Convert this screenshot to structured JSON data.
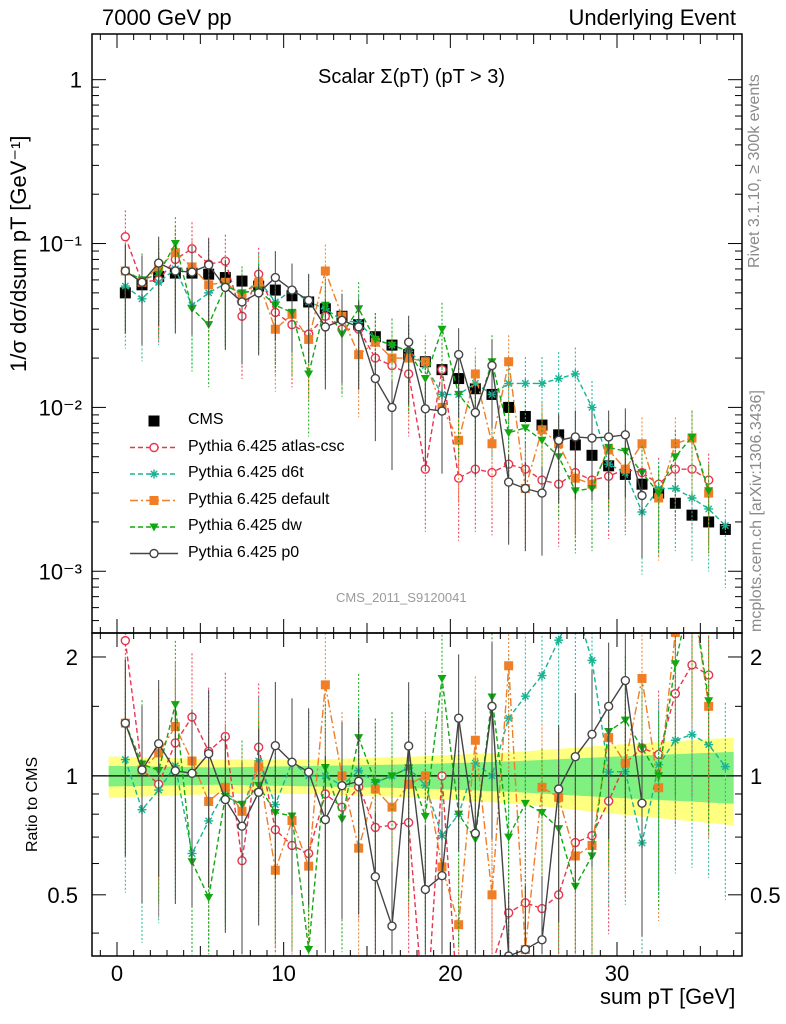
{
  "header": {
    "left": "7000 GeV pp",
    "right": "Underlying Event"
  },
  "side_labels": {
    "top": "Rivet 3.1.10, ≥ 300k events",
    "bottom": "mcplots.cern.ch [arXiv:1306.3436]"
  },
  "analysis_id": "CMS_2011_S9120041",
  "chart_data": [
    {
      "type": "scatter",
      "panel": "main",
      "title": "Scalar Σ(pT) (pT > 3)",
      "xlabel": "sum pT [GeV]",
      "ylabel": "1/σ dσ/dsum pT [GeV⁻¹]",
      "xlim": [
        -1.5,
        37.5
      ],
      "ylim": [
        0.00042,
        1.9
      ],
      "yscale": "log",
      "y_ticks": [
        "10⁻³",
        "10⁻²",
        "10⁻¹",
        "1"
      ],
      "legend_position": "left-center",
      "series": [
        {
          "name": "CMS",
          "color": "#000000",
          "marker": "square",
          "line": "none",
          "x": [
            0.5,
            1.5,
            2.5,
            3.5,
            4.5,
            5.5,
            6.5,
            7.5,
            8.5,
            9.5,
            10.5,
            11.5,
            12.5,
            13.5,
            14.5,
            15.5,
            16.5,
            17.5,
            18.5,
            19.5,
            20.5,
            21.5,
            22.5,
            23.5,
            24.5,
            25.5,
            26.5,
            27.5,
            28.5,
            29.5,
            30.5,
            31.5,
            32.5,
            33.5,
            34.5,
            35.5,
            36.5
          ],
          "y": [
            0.05,
            0.056,
            0.063,
            0.066,
            0.066,
            0.065,
            0.062,
            0.059,
            0.055,
            0.052,
            0.048,
            0.044,
            0.04,
            0.036,
            0.032,
            0.027,
            0.024,
            0.021,
            0.019,
            0.017,
            0.015,
            0.013,
            0.012,
            0.01,
            0.0088,
            0.0078,
            0.0068,
            0.0059,
            0.0051,
            0.0044,
            0.0039,
            0.0034,
            0.003,
            0.0026,
            0.0022,
            0.002,
            0.0018
          ]
        },
        {
          "name": "Pythia 6.425 atlas-csc",
          "color": "#e8354f",
          "marker": "open-circle",
          "line": "dashed",
          "x": [
            0.5,
            1.5,
            2.5,
            3.5,
            4.5,
            5.5,
            6.5,
            7.5,
            8.5,
            9.5,
            10.5,
            11.5,
            12.5,
            13.5,
            14.5,
            15.5,
            16.5,
            17.5,
            18.5,
            19.5,
            20.5,
            21.5,
            22.5,
            23.5,
            24.5,
            25.5,
            26.5,
            27.5,
            28.5,
            29.5,
            30.5,
            31.5,
            32.5,
            33.5,
            34.5,
            35.5
          ],
          "y": [
            0.11,
            0.058,
            0.06,
            0.08,
            0.093,
            0.075,
            0.078,
            0.036,
            0.065,
            0.038,
            0.032,
            0.028,
            0.036,
            0.03,
            0.03,
            0.02,
            0.018,
            0.016,
            0.0042,
            0.017,
            0.0037,
            0.0042,
            0.004,
            0.0045,
            0.0042,
            0.0036,
            0.0034,
            0.004,
            0.0036,
            0.0038,
            0.0042,
            0.004,
            0.0034,
            0.0042,
            0.0042,
            0.0036
          ]
        },
        {
          "name": "Pythia 6.425 d6t",
          "color": "#1ab394",
          "marker": "asterisk",
          "line": "dashed",
          "x": [
            0.5,
            1.5,
            2.5,
            3.5,
            4.5,
            5.5,
            6.5,
            7.5,
            8.5,
            9.5,
            10.5,
            11.5,
            12.5,
            13.5,
            14.5,
            15.5,
            16.5,
            17.5,
            18.5,
            19.5,
            20.5,
            21.5,
            22.5,
            23.5,
            24.5,
            25.5,
            26.5,
            27.5,
            28.5,
            29.5,
            30.5,
            31.5,
            32.5,
            33.5,
            34.5,
            35.5,
            36.5
          ],
          "y": [
            0.055,
            0.046,
            0.058,
            0.07,
            0.042,
            0.05,
            0.057,
            0.048,
            0.06,
            0.044,
            0.052,
            0.044,
            0.04,
            0.034,
            0.033,
            0.026,
            0.024,
            0.022,
            0.018,
            0.012,
            0.012,
            0.014,
            0.012,
            0.014,
            0.014,
            0.014,
            0.015,
            0.016,
            0.01,
            0.0045,
            0.004,
            0.0023,
            0.0032,
            0.0032,
            0.0028,
            0.0024,
            0.0019
          ]
        },
        {
          "name": "Pythia 6.425 default",
          "color": "#f07e26",
          "marker": "square",
          "line": "dashdot",
          "x": [
            0.5,
            1.5,
            2.5,
            3.5,
            4.5,
            5.5,
            6.5,
            7.5,
            8.5,
            9.5,
            10.5,
            11.5,
            12.5,
            13.5,
            14.5,
            15.5,
            16.5,
            17.5,
            18.5,
            19.5,
            20.5,
            21.5,
            22.5,
            23.5,
            24.5,
            25.5,
            26.5,
            27.5,
            28.5,
            29.5,
            30.5,
            31.5,
            32.5,
            33.5,
            34.5,
            35.5
          ],
          "y": [
            0.068,
            0.058,
            0.072,
            0.088,
            0.072,
            0.056,
            0.058,
            0.048,
            0.058,
            0.03,
            0.037,
            0.026,
            0.068,
            0.036,
            0.021,
            0.025,
            0.02,
            0.02,
            0.019,
            0.01,
            0.0063,
            0.016,
            0.006,
            0.019,
            0.0032,
            0.0073,
            0.006,
            0.0037,
            0.0034,
            0.0055,
            0.0042,
            0.006,
            0.0028,
            0.006,
            0.0065,
            0.003
          ]
        },
        {
          "name": "Pythia 6.425 dw",
          "color": "#12a812",
          "marker": "triangle-down",
          "line": "dashed",
          "x": [
            0.5,
            1.5,
            2.5,
            3.5,
            4.5,
            5.5,
            6.5,
            7.5,
            8.5,
            9.5,
            10.5,
            11.5,
            12.5,
            13.5,
            14.5,
            15.5,
            16.5,
            17.5,
            18.5,
            19.5,
            20.5,
            21.5,
            22.5,
            23.5,
            24.5,
            25.5,
            26.5,
            27.5,
            28.5,
            29.5,
            30.5,
            31.5,
            32.5,
            33.5,
            34.5,
            35.5
          ],
          "y": [
            0.068,
            0.06,
            0.065,
            0.1,
            0.04,
            0.032,
            0.055,
            0.05,
            0.052,
            0.042,
            0.038,
            0.016,
            0.042,
            0.028,
            0.04,
            0.026,
            0.024,
            0.022,
            0.015,
            0.03,
            0.012,
            0.009,
            0.019,
            0.007,
            0.0075,
            0.0063,
            0.005,
            0.0031,
            0.0032,
            0.0057,
            0.0054,
            0.004,
            0.003,
            0.005,
            0.0066,
            0.0031
          ]
        },
        {
          "name": "Pythia 6.425 p0",
          "color": "#444444",
          "marker": "open-circle",
          "line": "solid",
          "x": [
            0.5,
            1.5,
            2.5,
            3.5,
            4.5,
            5.5,
            6.5,
            7.5,
            8.5,
            9.5,
            10.5,
            11.5,
            12.5,
            13.5,
            14.5,
            15.5,
            16.5,
            17.5,
            18.5,
            19.5,
            20.5,
            21.5,
            22.5,
            23.5,
            24.5,
            25.5,
            26.5,
            27.5,
            28.5,
            29.5,
            30.5,
            31.5
          ],
          "y": [
            0.068,
            0.058,
            0.076,
            0.068,
            0.067,
            0.074,
            0.054,
            0.044,
            0.05,
            0.062,
            0.052,
            0.045,
            0.031,
            0.034,
            0.031,
            0.015,
            0.01,
            0.025,
            0.0098,
            0.0095,
            0.021,
            0.0093,
            0.018,
            0.0035,
            0.0032,
            0.003,
            0.0063,
            0.0066,
            0.0065,
            0.0066,
            0.0068,
            0.0029
          ]
        }
      ]
    },
    {
      "type": "scatter",
      "panel": "ratio",
      "xlabel": "sum pT [GeV]",
      "ylabel": "Ratio to CMS",
      "xlim": [
        -1.5,
        37.5
      ],
      "ylim": [
        0.35,
        2.3
      ],
      "yscale": "log",
      "y_ticks": [
        "0.5",
        "1",
        "2"
      ],
      "x_ticks": [
        "0",
        "10",
        "20",
        "30"
      ],
      "reference_line": 1,
      "bands": {
        "inner_color": "#80f080",
        "outer_color": "#ffff80",
        "x": [
          -0.5,
          6,
          12,
          18,
          24,
          30,
          37
        ],
        "inner_half_width": [
          0.06,
          0.05,
          0.06,
          0.07,
          0.09,
          0.12,
          0.15
        ],
        "outer_half_width": [
          0.12,
          0.1,
          0.1,
          0.12,
          0.15,
          0.2,
          0.25
        ]
      }
    }
  ]
}
